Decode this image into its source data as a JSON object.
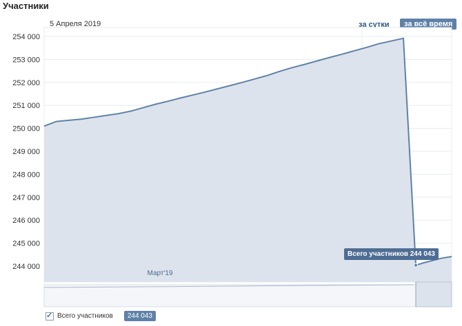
{
  "page": {
    "title": "Участники",
    "date": "5 Апреля 2019",
    "btn_day": "за сутки",
    "btn_all": "за всё время",
    "tooltip": "Всего участников 244 043",
    "legend_label": "Всего участников",
    "legend_value": "244 043",
    "x_marker": "Март'19"
  },
  "colors": {
    "line": "#5e81a8",
    "fill": "#dde3ec",
    "grid": "#e7ebf0",
    "accent": "#5e81a8"
  },
  "chart_data": {
    "type": "area",
    "title": "Участники",
    "ylim": [
      243800,
      254100
    ],
    "y_ticks": [
      "254 000",
      "253 000",
      "252 000",
      "251 000",
      "250 000",
      "249 000",
      "248 000",
      "247 000",
      "246 000",
      "245 000",
      "244 000"
    ],
    "y_tick_values": [
      254000,
      253000,
      252000,
      251000,
      250000,
      249000,
      248000,
      247000,
      246000,
      245000,
      244000
    ],
    "x_label": "Март'19",
    "series": [
      {
        "name": "Всего участников",
        "values": [
          250100,
          250300,
          250350,
          250400,
          250480,
          250560,
          250640,
          250750,
          250900,
          251050,
          251180,
          251320,
          251450,
          251580,
          251720,
          251860,
          252000,
          252150,
          252300,
          252480,
          252640,
          252780,
          252930,
          253080,
          253220,
          253370,
          253520,
          253680,
          253800,
          253920,
          244043,
          244150,
          244250,
          244350,
          244420
        ]
      }
    ]
  }
}
